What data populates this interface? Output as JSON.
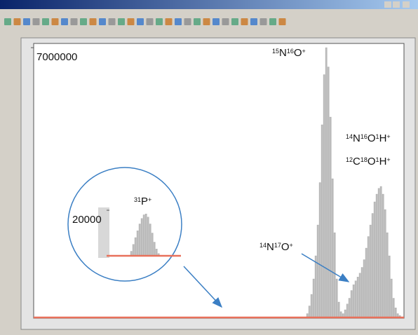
{
  "chart_data": {
    "type": "bar",
    "values": [
      100000,
      300000,
      600000,
      1000000,
      1600000,
      2400000,
      3500000,
      5000000,
      6300000,
      7000000,
      6500000,
      5200000,
      3600000,
      2200000,
      1000000,
      400000,
      150000,
      100000,
      200000,
      350000,
      500000,
      700000,
      850000,
      950000,
      1050000,
      1150000,
      1300000,
      1500000,
      1800000,
      2100000,
      2400000,
      2700000,
      3000000,
      3200000,
      3350000,
      3400000,
      3200000,
      2800000,
      2200000,
      1600000,
      1000000,
      500000,
      250000,
      100000,
      50000
    ],
    "color": "#bdbdbd",
    "baseline_color": "#e8705a",
    "ylim": [
      0,
      7000000
    ],
    "yticks": [
      7000000
    ],
    "annotations": [
      {
        "parts": [
          "15",
          "N",
          "16",
          "O",
          "+"
        ]
      },
      {
        "parts": [
          "14",
          "N",
          "16",
          "O",
          "1",
          "H",
          "+"
        ]
      },
      {
        "parts": [
          "12",
          "C",
          "18",
          "O",
          "1",
          "H",
          "+"
        ]
      },
      {
        "parts": [
          "14",
          "N",
          "17",
          "O",
          "+"
        ]
      }
    ],
    "inset": {
      "type": "bar",
      "values": [
        2000,
        5000,
        8000,
        11000,
        14000,
        16400,
        18000,
        18400,
        17000,
        14000,
        10000,
        6000,
        3000,
        1000
      ],
      "color": "#bdbdbd",
      "ylim": [
        0,
        20000
      ],
      "yticks": [
        20000
      ],
      "annotation": {
        "parts": [
          "31",
          "P",
          "+"
        ]
      }
    }
  }
}
